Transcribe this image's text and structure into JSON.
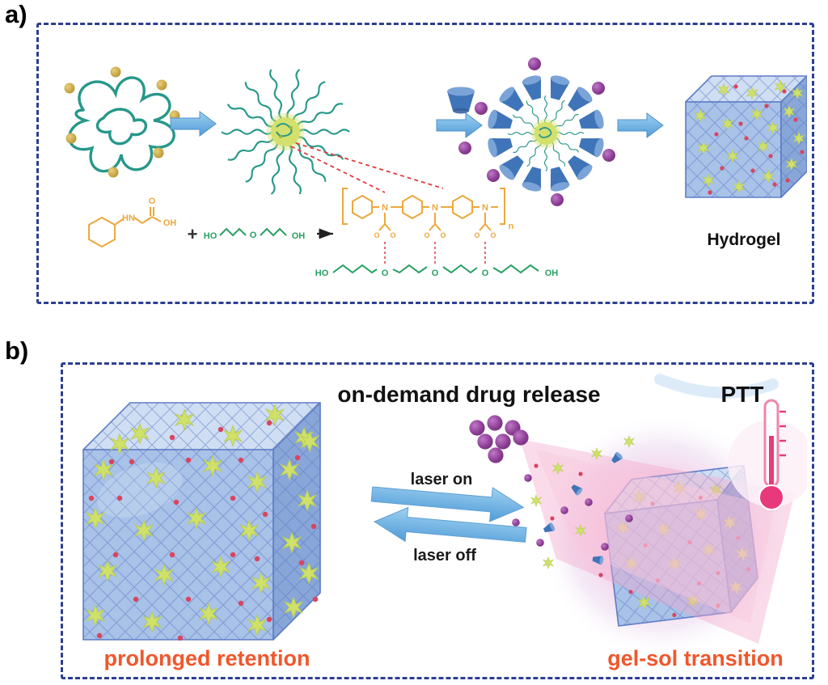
{
  "panel_a": {
    "label": "a)",
    "hydrogel_label": "Hydrogel",
    "chemistry": {
      "plus": "+",
      "monomer_hn": "HN",
      "monomer_o": "O",
      "monomer_oh": "OH",
      "peg_ho": "HO",
      "peg_o": "O",
      "peg_oh": "OH",
      "polymer_n": "N",
      "polymer_sub": "n",
      "pendant_o": "O",
      "chain_ho": "HO",
      "chain_o": "O",
      "chain_oh": "OH"
    }
  },
  "panel_b": {
    "label": "b)",
    "title": "on-demand drug release",
    "ptt": "PTT",
    "laser_on": "laser on",
    "laser_off": "laser off",
    "caption_left": "prolonged retention",
    "caption_right": "gel-sol transition"
  },
  "colors": {
    "border_blue": "#2d3f92",
    "teal": "#27988a",
    "gold": "#c9a13b",
    "arrow_blue": "#55a4de",
    "cone_blue": "#3f74b8",
    "purple": "#8a3c92",
    "cube_top": "#cfdef2",
    "cube_front": "#a8c2e8",
    "cube_right": "#88a6d8",
    "cube_edge": "#5f7cc6",
    "star_green": "#cfe169",
    "dot_red": "#d9455f",
    "chem_orange": "#eda83c",
    "chem_green": "#27a060",
    "caption_orange": "#f0572c",
    "thermo_pink": "#e8397b",
    "glow_pink": "#f2a9cd"
  }
}
